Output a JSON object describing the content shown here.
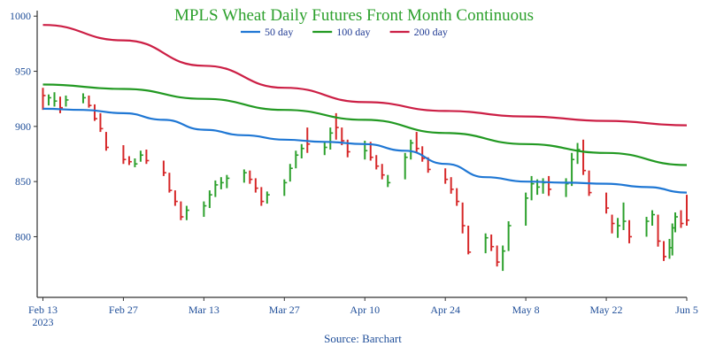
{
  "chart_data": {
    "type": "ohlc",
    "title": "MPLS Wheat Daily Futures Front Month Continuous",
    "source": "Source: Barchart",
    "ylim": [
      745,
      1005
    ],
    "yticks": [
      800,
      850,
      900,
      950,
      1000
    ],
    "xlim": [
      "2023-02-12",
      "2023-06-05"
    ],
    "xticks": [
      {
        "date": "2023-02-13",
        "label": "Feb 13",
        "sublabel": "2023"
      },
      {
        "date": "2023-02-27",
        "label": "Feb 27",
        "sublabel": ""
      },
      {
        "date": "2023-03-13",
        "label": "Mar 13",
        "sublabel": ""
      },
      {
        "date": "2023-03-27",
        "label": "Mar 27",
        "sublabel": ""
      },
      {
        "date": "2023-04-10",
        "label": "Apr 10",
        "sublabel": ""
      },
      {
        "date": "2023-04-24",
        "label": "Apr 24",
        "sublabel": ""
      },
      {
        "date": "2023-05-08",
        "label": "May 8",
        "sublabel": ""
      },
      {
        "date": "2023-05-22",
        "label": "May 22",
        "sublabel": ""
      },
      {
        "date": "2023-06-05",
        "label": "Jun 5",
        "sublabel": ""
      }
    ],
    "legend": {
      "placement": "top-center"
    },
    "colors": {
      "up": "#2ca02c",
      "down": "#d62728"
    },
    "series": [
      {
        "name": "50 day",
        "color": "#1f77d4",
        "points": [
          [
            "2023-02-13",
            916
          ],
          [
            "2023-02-20",
            915
          ],
          [
            "2023-02-27",
            912
          ],
          [
            "2023-03-06",
            906
          ],
          [
            "2023-03-13",
            897
          ],
          [
            "2023-03-20",
            892
          ],
          [
            "2023-03-27",
            888
          ],
          [
            "2023-04-03",
            886
          ],
          [
            "2023-04-10",
            884
          ],
          [
            "2023-04-17",
            878
          ],
          [
            "2023-04-24",
            866
          ],
          [
            "2023-05-01",
            854
          ],
          [
            "2023-05-08",
            850
          ],
          [
            "2023-05-15",
            849
          ],
          [
            "2023-05-22",
            848
          ],
          [
            "2023-05-29",
            845
          ],
          [
            "2023-06-05",
            840
          ]
        ]
      },
      {
        "name": "100 day",
        "color": "#229922",
        "points": [
          [
            "2023-02-13",
            938
          ],
          [
            "2023-02-27",
            934
          ],
          [
            "2023-03-13",
            925
          ],
          [
            "2023-03-27",
            915
          ],
          [
            "2023-04-10",
            906
          ],
          [
            "2023-04-24",
            894
          ],
          [
            "2023-05-08",
            884
          ],
          [
            "2023-05-22",
            876
          ],
          [
            "2023-06-05",
            865
          ]
        ]
      },
      {
        "name": "200 day",
        "color": "#cc1f45",
        "points": [
          [
            "2023-02-13",
            992
          ],
          [
            "2023-02-27",
            978
          ],
          [
            "2023-03-13",
            955
          ],
          [
            "2023-03-27",
            935
          ],
          [
            "2023-04-10",
            922
          ],
          [
            "2023-04-24",
            914
          ],
          [
            "2023-05-08",
            909
          ],
          [
            "2023-05-22",
            905
          ],
          [
            "2023-06-05",
            901
          ]
        ]
      }
    ],
    "bars": [
      [
        "2023-02-13",
        935,
        915,
        928,
        "down"
      ],
      [
        "2023-02-14",
        929,
        919,
        926,
        "up"
      ],
      [
        "2023-02-15",
        931,
        918,
        923,
        "up"
      ],
      [
        "2023-02-16",
        927,
        912,
        917,
        "down"
      ],
      [
        "2023-02-17",
        928,
        918,
        924,
        "up"
      ],
      [
        "2023-02-20",
        930,
        921,
        926,
        "up"
      ],
      [
        "2023-02-21",
        928,
        917,
        919,
        "down"
      ],
      [
        "2023-02-22",
        920,
        905,
        907,
        "down"
      ],
      [
        "2023-02-23",
        912,
        895,
        898,
        "down"
      ],
      [
        "2023-02-24",
        895,
        878,
        881,
        "down"
      ],
      [
        "2023-02-27",
        883,
        866,
        870,
        "down"
      ],
      [
        "2023-02-28",
        873,
        865,
        868,
        "down"
      ],
      [
        "2023-03-01",
        871,
        863,
        866,
        "up"
      ],
      [
        "2023-03-02",
        878,
        868,
        874,
        "up"
      ],
      [
        "2023-03-03",
        879,
        866,
        869,
        "down"
      ],
      [
        "2023-03-06",
        869,
        855,
        858,
        "down"
      ],
      [
        "2023-03-07",
        858,
        840,
        842,
        "down"
      ],
      [
        "2023-03-08",
        842,
        828,
        832,
        "down"
      ],
      [
        "2023-03-09",
        832,
        815,
        818,
        "down"
      ],
      [
        "2023-03-10",
        828,
        815,
        824,
        "up"
      ],
      [
        "2023-03-13",
        832,
        818,
        828,
        "up"
      ],
      [
        "2023-03-14",
        842,
        826,
        838,
        "up"
      ],
      [
        "2023-03-15",
        851,
        836,
        847,
        "up"
      ],
      [
        "2023-03-16",
        854,
        843,
        849,
        "up"
      ],
      [
        "2023-03-17",
        856,
        844,
        853,
        "up"
      ],
      [
        "2023-03-20",
        861,
        849,
        858,
        "up"
      ],
      [
        "2023-03-21",
        860,
        848,
        852,
        "down"
      ],
      [
        "2023-03-22",
        853,
        840,
        844,
        "down"
      ],
      [
        "2023-03-23",
        845,
        828,
        832,
        "down"
      ],
      [
        "2023-03-24",
        841,
        830,
        838,
        "up"
      ],
      [
        "2023-03-27",
        852,
        837,
        849,
        "up"
      ],
      [
        "2023-03-28",
        866,
        850,
        862,
        "up"
      ],
      [
        "2023-03-29",
        878,
        862,
        874,
        "up"
      ],
      [
        "2023-03-30",
        884,
        871,
        880,
        "up"
      ],
      [
        "2023-03-31",
        899,
        876,
        884,
        "down"
      ],
      [
        "2023-04-03",
        886,
        874,
        881,
        "up"
      ],
      [
        "2023-04-04",
        899,
        879,
        894,
        "up"
      ],
      [
        "2023-04-05",
        912,
        888,
        899,
        "down"
      ],
      [
        "2023-04-06",
        899,
        883,
        887,
        "down"
      ],
      [
        "2023-04-07",
        888,
        872,
        877,
        "down"
      ],
      [
        "2023-04-10",
        887,
        870,
        878,
        "up"
      ],
      [
        "2023-04-11",
        886,
        869,
        872,
        "down"
      ],
      [
        "2023-04-12",
        874,
        861,
        864,
        "down"
      ],
      [
        "2023-04-13",
        866,
        852,
        856,
        "down"
      ],
      [
        "2023-04-14",
        856,
        845,
        849,
        "up"
      ],
      [
        "2023-04-17",
        876,
        852,
        872,
        "up"
      ],
      [
        "2023-04-18",
        888,
        870,
        885,
        "up"
      ],
      [
        "2023-04-19",
        895,
        876,
        880,
        "down"
      ],
      [
        "2023-04-20",
        882,
        868,
        871,
        "down"
      ],
      [
        "2023-04-21",
        872,
        858,
        861,
        "down"
      ],
      [
        "2023-04-24",
        862,
        848,
        852,
        "down"
      ],
      [
        "2023-04-25",
        854,
        839,
        843,
        "down"
      ],
      [
        "2023-04-26",
        844,
        828,
        832,
        "down"
      ],
      [
        "2023-04-27",
        831,
        803,
        810,
        "down"
      ],
      [
        "2023-04-28",
        810,
        784,
        786,
        "down"
      ],
      [
        "2023-05-01",
        803,
        785,
        799,
        "up"
      ],
      [
        "2023-05-02",
        802,
        787,
        791,
        "down"
      ],
      [
        "2023-05-03",
        792,
        773,
        777,
        "down"
      ],
      [
        "2023-05-04",
        792,
        769,
        787,
        "up"
      ],
      [
        "2023-05-05",
        814,
        787,
        810,
        "up"
      ],
      [
        "2023-05-08",
        840,
        810,
        835,
        "up"
      ],
      [
        "2023-05-09",
        855,
        833,
        848,
        "up"
      ],
      [
        "2023-05-10",
        852,
        838,
        845,
        "up"
      ],
      [
        "2023-05-11",
        853,
        839,
        849,
        "up"
      ],
      [
        "2023-05-12",
        855,
        837,
        843,
        "down"
      ],
      [
        "2023-05-15",
        853,
        836,
        848,
        "up"
      ],
      [
        "2023-05-16",
        876,
        846,
        870,
        "up"
      ],
      [
        "2023-05-17",
        885,
        866,
        879,
        "up"
      ],
      [
        "2023-05-18",
        888,
        856,
        860,
        "down"
      ],
      [
        "2023-05-19",
        860,
        837,
        840,
        "down"
      ],
      [
        "2023-05-22",
        840,
        821,
        826,
        "down"
      ],
      [
        "2023-05-23",
        820,
        803,
        812,
        "down"
      ],
      [
        "2023-05-24",
        817,
        799,
        810,
        "up"
      ],
      [
        "2023-05-25",
        831,
        806,
        814,
        "up"
      ],
      [
        "2023-05-26",
        815,
        794,
        800,
        "down"
      ],
      [
        "2023-05-29",
        818,
        800,
        814,
        "up"
      ],
      [
        "2023-05-30",
        824,
        810,
        820,
        "up"
      ],
      [
        "2023-05-31",
        820,
        791,
        796,
        "down"
      ],
      [
        "2023-06-01",
        796,
        778,
        782,
        "down"
      ],
      [
        "2023-06-02",
        798,
        780,
        790,
        "up"
      ],
      [
        "2023-06-02",
        812,
        783,
        808,
        "up"
      ],
      [
        "2023-06-03",
        822,
        804,
        818,
        "up"
      ],
      [
        "2023-06-04",
        824,
        808,
        812,
        "down"
      ],
      [
        "2023-06-05",
        838,
        810,
        815,
        "down"
      ]
    ]
  }
}
